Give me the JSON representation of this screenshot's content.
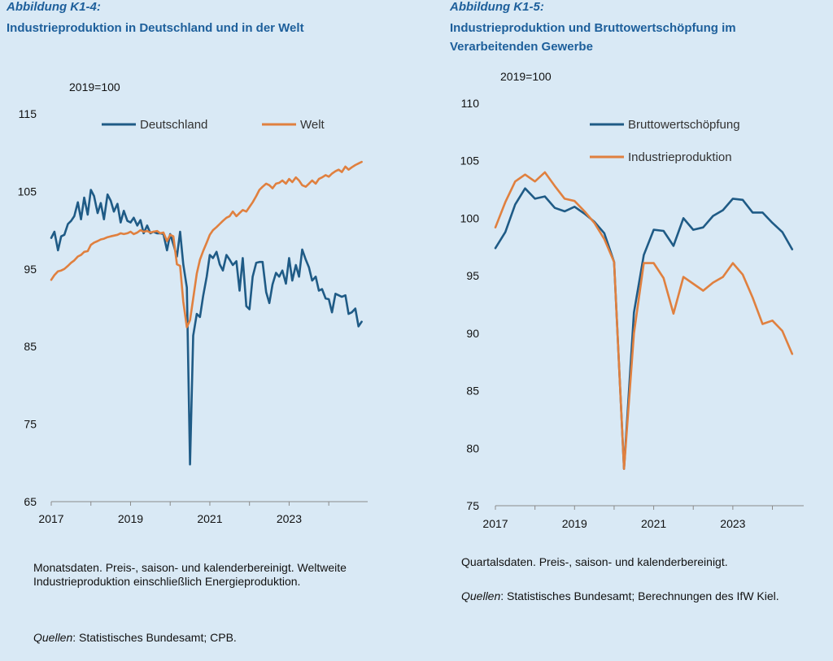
{
  "chart_data": [
    {
      "type": "line",
      "label": "Abbildung K1-4:",
      "title": "Industrieproduktion in Deutschland und in der Welt",
      "ylabel": "2019=100",
      "ylim": [
        65,
        115
      ],
      "yticks": [
        65,
        75,
        85,
        95,
        105,
        115
      ],
      "xlim": [
        2017.0,
        2024.92
      ],
      "xticks": [
        2017,
        2019,
        2021,
        2023
      ],
      "grid": false,
      "legend_position": "top",
      "note": "Monatsdaten. Preis-, saison- und kalenderbereinigt. Weltweite Industrieproduktion einschließlich Energieproduktion.",
      "source_label": "Quellen",
      "source_text": ": Statistisches Bundesamt; CPB.",
      "series": [
        {
          "name": "Deutschland",
          "color": "#1f5b86",
          "x": [
            2017.0,
            2017.08,
            2017.17,
            2017.25,
            2017.33,
            2017.42,
            2017.5,
            2017.58,
            2017.67,
            2017.75,
            2017.83,
            2017.92,
            2018.0,
            2018.08,
            2018.17,
            2018.25,
            2018.33,
            2018.42,
            2018.5,
            2018.58,
            2018.67,
            2018.75,
            2018.83,
            2018.92,
            2019.0,
            2019.08,
            2019.17,
            2019.25,
            2019.33,
            2019.42,
            2019.5,
            2019.58,
            2019.67,
            2019.75,
            2019.83,
            2019.92,
            2020.0,
            2020.08,
            2020.17,
            2020.25,
            2020.33,
            2020.42,
            2020.5,
            2020.58,
            2020.67,
            2020.75,
            2020.83,
            2020.92,
            2021.0,
            2021.08,
            2021.17,
            2021.25,
            2021.33,
            2021.42,
            2021.5,
            2021.58,
            2021.67,
            2021.75,
            2021.83,
            2021.92,
            2022.0,
            2022.08,
            2022.17,
            2022.25,
            2022.33,
            2022.42,
            2022.5,
            2022.58,
            2022.67,
            2022.75,
            2022.83,
            2022.92,
            2023.0,
            2023.08,
            2023.17,
            2023.25,
            2023.33,
            2023.42,
            2023.5,
            2023.58,
            2023.67,
            2023.75,
            2023.83,
            2023.92,
            2024.0,
            2024.08,
            2024.17,
            2024.25,
            2024.33,
            2024.42,
            2024.5,
            2024.58,
            2024.67,
            2024.75,
            2024.83
          ],
          "values": [
            99,
            99.8,
            97.4,
            99.2,
            99.4,
            100.8,
            101.2,
            101.8,
            103.6,
            101.4,
            104.2,
            102,
            105.2,
            104.4,
            102.2,
            103.5,
            101.4,
            104.6,
            103.8,
            102.4,
            103.4,
            101,
            102.5,
            101.2,
            101,
            101.6,
            100.6,
            101.3,
            99.6,
            100.6,
            99.6,
            99.8,
            99.6,
            99.6,
            99.5,
            97.4,
            99.5,
            98.2,
            96.6,
            99.8,
            95.6,
            92.6,
            69.8,
            86.4,
            89.2,
            88.8,
            91.5,
            94,
            96.8,
            96.4,
            97.2,
            95.6,
            94.8,
            96.8,
            96.2,
            95.5,
            96,
            92.2,
            96.4,
            90.2,
            89.8,
            94,
            95.8,
            95.9,
            95.9,
            92,
            90.6,
            93,
            94.5,
            94,
            94.8,
            93.1,
            96.4,
            93.5,
            95.5,
            94,
            97.5,
            96.2,
            95.2,
            93.5,
            94,
            92.2,
            92.4,
            91.2,
            91.1,
            89.4,
            91.8,
            91.6,
            91.4,
            91.6,
            89.2,
            89.4,
            89.9,
            87.6,
            88.2
          ]
        },
        {
          "name": "Welt",
          "color": "#e0803f",
          "x": [
            2017.0,
            2017.08,
            2017.17,
            2017.25,
            2017.33,
            2017.42,
            2017.5,
            2017.58,
            2017.67,
            2017.75,
            2017.83,
            2017.92,
            2018.0,
            2018.08,
            2018.17,
            2018.25,
            2018.33,
            2018.42,
            2018.5,
            2018.58,
            2018.67,
            2018.75,
            2018.83,
            2018.92,
            2019.0,
            2019.08,
            2019.17,
            2019.25,
            2019.33,
            2019.42,
            2019.5,
            2019.58,
            2019.67,
            2019.75,
            2019.83,
            2019.92,
            2020.0,
            2020.08,
            2020.17,
            2020.25,
            2020.33,
            2020.42,
            2020.5,
            2020.58,
            2020.67,
            2020.75,
            2020.83,
            2020.92,
            2021.0,
            2021.08,
            2021.17,
            2021.25,
            2021.33,
            2021.42,
            2021.5,
            2021.58,
            2021.67,
            2021.75,
            2021.83,
            2021.92,
            2022.0,
            2022.08,
            2022.17,
            2022.25,
            2022.33,
            2022.42,
            2022.5,
            2022.58,
            2022.67,
            2022.75,
            2022.83,
            2022.92,
            2023.0,
            2023.08,
            2023.17,
            2023.25,
            2023.33,
            2023.42,
            2023.5,
            2023.58,
            2023.67,
            2023.75,
            2023.83,
            2023.92,
            2024.0,
            2024.08,
            2024.17,
            2024.25,
            2024.33,
            2024.42,
            2024.5,
            2024.58,
            2024.67,
            2024.75,
            2024.83
          ],
          "values": [
            93.6,
            94.2,
            94.7,
            94.8,
            95,
            95.4,
            95.8,
            96.1,
            96.6,
            96.8,
            97.2,
            97.3,
            98.1,
            98.4,
            98.6,
            98.8,
            98.9,
            99.1,
            99.2,
            99.3,
            99.4,
            99.6,
            99.5,
            99.6,
            99.8,
            99.5,
            99.7,
            100,
            99.8,
            99.9,
            99.7,
            99.8,
            99.9,
            99.6,
            99.7,
            98.6,
            99.4,
            99.2,
            95.6,
            95.4,
            90.8,
            87.5,
            88.4,
            91.2,
            94.4,
            96.2,
            97.3,
            98.4,
            99.4,
            100,
            100.4,
            100.8,
            101.2,
            101.6,
            101.8,
            102.4,
            101.8,
            102.2,
            102.6,
            102.4,
            103,
            103.6,
            104.4,
            105.2,
            105.6,
            106,
            105.8,
            105.4,
            106,
            106.1,
            106.4,
            106,
            106.6,
            106.2,
            106.8,
            106.4,
            105.8,
            105.6,
            106,
            106.4,
            106,
            106.6,
            106.8,
            107.1,
            106.9,
            107.3,
            107.6,
            107.8,
            107.5,
            108.2,
            107.8,
            108.1,
            108.4,
            108.6,
            108.8
          ]
        }
      ]
    },
    {
      "type": "line",
      "label": "Abbildung K1-5:",
      "title": "Industrieproduktion und Bruttowertschöpfung im Verarbeitenden Gewerbe",
      "ylabel": "2019=100",
      "ylim": [
        75,
        110
      ],
      "yticks": [
        75,
        80,
        85,
        90,
        95,
        100,
        105,
        110
      ],
      "xlim": [
        2017.0,
        2024.75
      ],
      "xticks": [
        2017,
        2019,
        2021,
        2023
      ],
      "grid": false,
      "legend_position": "top",
      "note": "Quartalsdaten. Preis-, saison- und kalenderbereinigt.",
      "source_label": "Quellen",
      "source_text": ": Statistisches Bundesamt; Berechnungen des IfW Kiel.",
      "series": [
        {
          "name": "Bruttowertschöpfung",
          "color": "#1f5b86",
          "x": [
            2017.0,
            2017.25,
            2017.5,
            2017.75,
            2018.0,
            2018.25,
            2018.5,
            2018.75,
            2019.0,
            2019.25,
            2019.5,
            2019.75,
            2020.0,
            2020.25,
            2020.5,
            2020.75,
            2021.0,
            2021.25,
            2021.5,
            2021.75,
            2022.0,
            2022.25,
            2022.5,
            2022.75,
            2023.0,
            2023.25,
            2023.5,
            2023.75,
            2024.0,
            2024.25,
            2024.5
          ],
          "values": [
            97.4,
            98.8,
            101.2,
            102.6,
            101.7,
            101.9,
            100.9,
            100.6,
            101,
            100.4,
            99.7,
            98.7,
            96.2,
            78.2,
            91.8,
            96.8,
            99,
            98.9,
            97.6,
            100,
            99,
            99.2,
            100.2,
            100.7,
            101.7,
            101.6,
            100.5,
            100.5,
            99.6,
            98.8,
            97.3
          ]
        },
        {
          "name": "Industrieproduktion",
          "color": "#e0803f",
          "x": [
            2017.0,
            2017.25,
            2017.5,
            2017.75,
            2018.0,
            2018.25,
            2018.5,
            2018.75,
            2019.0,
            2019.25,
            2019.5,
            2019.75,
            2020.0,
            2020.25,
            2020.5,
            2020.75,
            2021.0,
            2021.25,
            2021.5,
            2021.75,
            2022.0,
            2022.25,
            2022.5,
            2022.75,
            2023.0,
            2023.25,
            2023.5,
            2023.75,
            2024.0,
            2024.25,
            2024.5
          ],
          "values": [
            99.2,
            101.4,
            103.2,
            103.8,
            103.2,
            104,
            102.8,
            101.7,
            101.5,
            100.6,
            99.6,
            98.2,
            96.2,
            78.2,
            90,
            96.1,
            96.1,
            94.8,
            91.7,
            94.9,
            94.3,
            93.7,
            94.4,
            94.9,
            96.1,
            95.1,
            93.1,
            90.8,
            91.1,
            90.2,
            88.2
          ]
        }
      ]
    }
  ]
}
